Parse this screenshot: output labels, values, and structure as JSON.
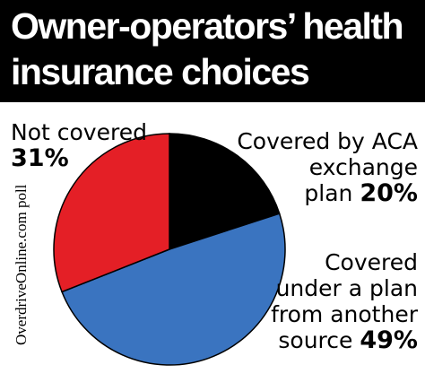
{
  "chart_data": {
    "type": "pie",
    "title": "Owner-operators’ health insurance choices",
    "title_lines": [
      "Owner-operators’ health",
      "insurance choices"
    ],
    "slices": [
      {
        "label": "Covered by ACA exchange plan",
        "label_lines": [
          "Covered by ACA",
          "exchange",
          "plan"
        ],
        "value": 20,
        "value_text": "20%",
        "color": "#000000"
      },
      {
        "label": "Covered under a plan from another source",
        "label_lines": [
          "Covered",
          "under a plan",
          "from another",
          "source"
        ],
        "value": 49,
        "value_text": "49%",
        "color": "#3a74c0"
      },
      {
        "label": "Not covered",
        "label_lines": [
          "Not covered"
        ],
        "value": 31,
        "value_text": "31%",
        "color": "#e41f26"
      }
    ],
    "source": "OverdriveOnline.com poll"
  }
}
